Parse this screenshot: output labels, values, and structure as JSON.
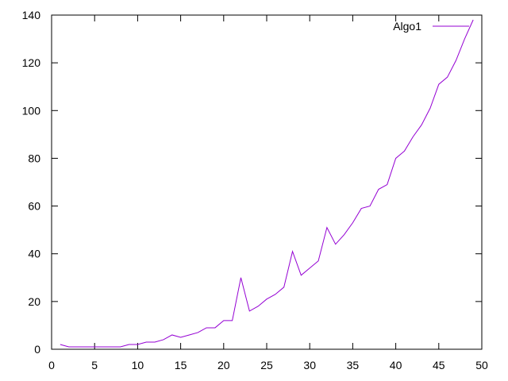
{
  "chart_data": {
    "type": "line",
    "title": "",
    "xlabel": "",
    "ylabel": "",
    "xlim": [
      0,
      50
    ],
    "ylim": [
      0,
      140
    ],
    "xticks": [
      0,
      5,
      10,
      15,
      20,
      25,
      30,
      35,
      40,
      45,
      50
    ],
    "yticks": [
      0,
      20,
      40,
      60,
      80,
      100,
      120,
      140
    ],
    "grid": false,
    "legend_position": "top-right",
    "series": [
      {
        "name": "Algo1",
        "color": "#9400d3",
        "x": [
          1,
          2,
          3,
          4,
          5,
          6,
          7,
          8,
          9,
          10,
          11,
          12,
          13,
          14,
          15,
          16,
          17,
          18,
          19,
          20,
          21,
          22,
          23,
          24,
          25,
          26,
          27,
          28,
          29,
          30,
          31,
          32,
          33,
          34,
          35,
          36,
          37,
          38,
          39,
          40,
          41,
          42,
          43,
          44,
          45,
          46,
          47,
          48,
          49
        ],
        "y": [
          2,
          1,
          1,
          1,
          1,
          1,
          1,
          1,
          2,
          2,
          3,
          3,
          4,
          6,
          5,
          6,
          7,
          9,
          9,
          12,
          12,
          30,
          16,
          18,
          21,
          23,
          26,
          41,
          31,
          34,
          37,
          51,
          44,
          48,
          53,
          59,
          60,
          67,
          69,
          80,
          83,
          89,
          94,
          101,
          111,
          114,
          121,
          130,
          138
        ]
      }
    ]
  }
}
